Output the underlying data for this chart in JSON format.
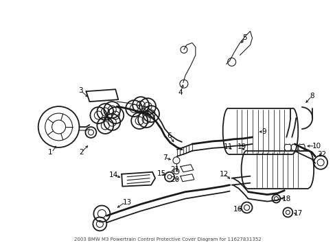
{
  "title": "2003 BMW M3 Powertrain Control Protective Cover Diagram for 11627831352",
  "background_color": "#ffffff",
  "line_color": "#1a1a1a",
  "label_color": "#000000",
  "fig_width": 4.89,
  "fig_height": 3.6,
  "dpi": 100
}
